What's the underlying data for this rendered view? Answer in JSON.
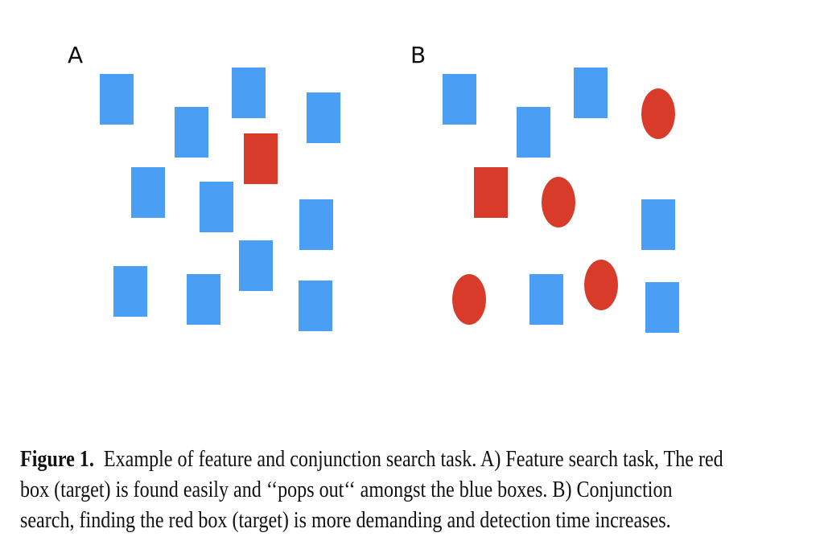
{
  "figure": {
    "panel_a_label": "A",
    "panel_b_label": "B",
    "colors": {
      "distractor_blue": "#4a9ff5",
      "target_red": "#d93b2a"
    },
    "panel_a": {
      "description_items": [
        {
          "shape": "box",
          "color": "blue"
        },
        {
          "shape": "box",
          "color": "blue"
        },
        {
          "shape": "box",
          "color": "blue"
        },
        {
          "shape": "box",
          "color": "blue"
        },
        {
          "shape": "box",
          "color": "red"
        },
        {
          "shape": "box",
          "color": "blue"
        },
        {
          "shape": "box",
          "color": "blue"
        },
        {
          "shape": "box",
          "color": "blue"
        },
        {
          "shape": "box",
          "color": "blue"
        },
        {
          "shape": "box",
          "color": "blue"
        },
        {
          "shape": "box",
          "color": "blue"
        },
        {
          "shape": "box",
          "color": "blue"
        }
      ]
    },
    "panel_b": {
      "description_items": [
        {
          "shape": "box",
          "color": "blue"
        },
        {
          "shape": "box",
          "color": "blue"
        },
        {
          "shape": "box",
          "color": "blue"
        },
        {
          "shape": "circle",
          "color": "red"
        },
        {
          "shape": "box",
          "color": "red"
        },
        {
          "shape": "circle",
          "color": "red"
        },
        {
          "shape": "box",
          "color": "blue"
        },
        {
          "shape": "circle",
          "color": "red"
        },
        {
          "shape": "box",
          "color": "blue"
        },
        {
          "shape": "circle",
          "color": "red"
        },
        {
          "shape": "box",
          "color": "blue"
        }
      ]
    }
  },
  "caption": {
    "figure_number": "Figure 1.",
    "line1": "Example of feature and conjunction search task. A) Feature search task, The red",
    "line2": "box (target) is found easily and ‘‘pops out‘‘ amongst the blue boxes. B) Conjunction",
    "line3": "search, finding the red box (target) is more demanding and detection time increases."
  }
}
